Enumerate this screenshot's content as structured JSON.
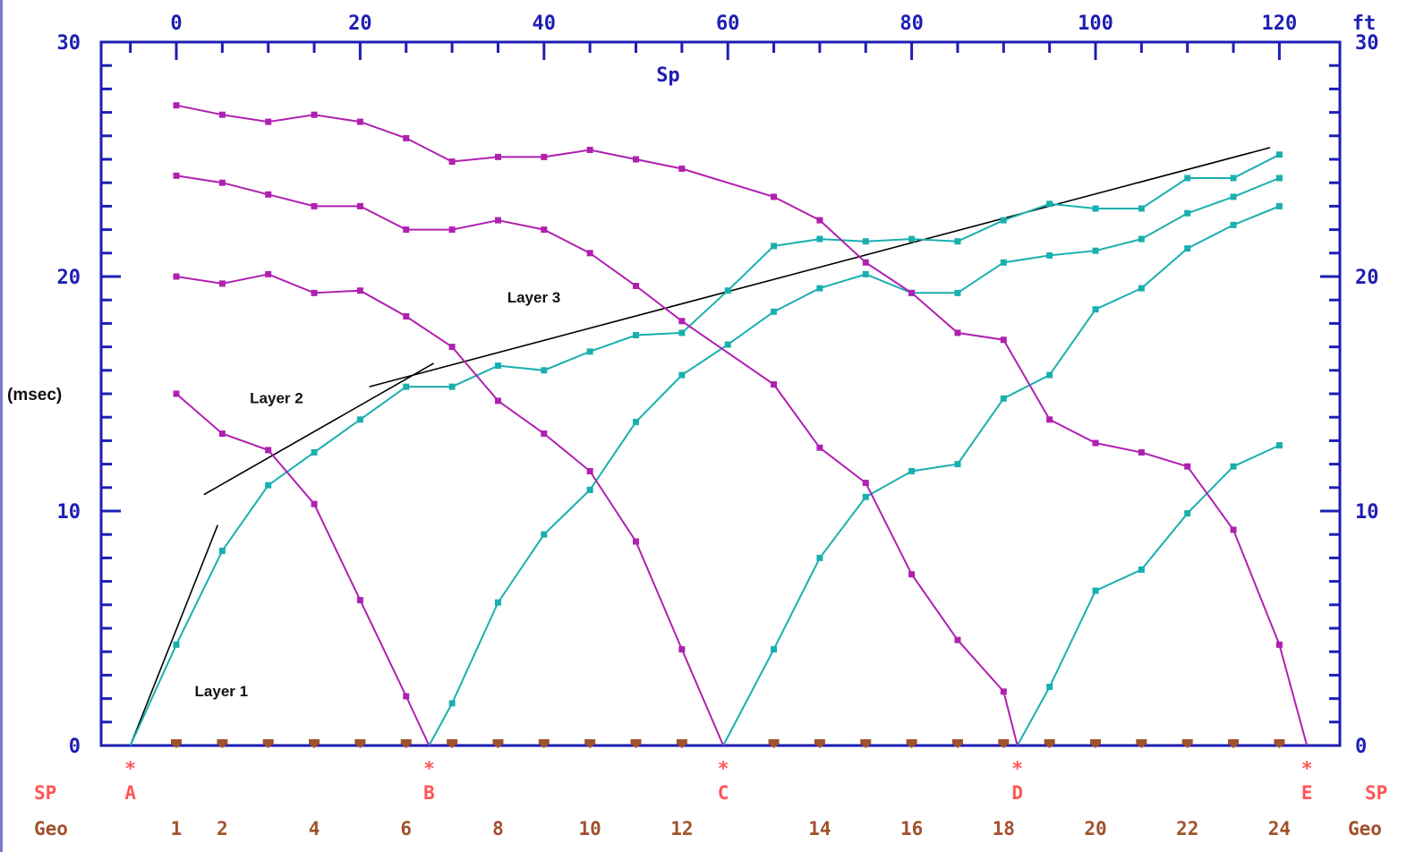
{
  "chart_data": {
    "type": "line",
    "title": "Sp",
    "x_unit_label": "ft",
    "y_unit_label": "(msec)",
    "xlim": [
      -5,
      123
    ],
    "ylim": [
      0,
      30
    ],
    "x_ticks": [
      0,
      20,
      40,
      60,
      80,
      100,
      120
    ],
    "x_tick_labels": [
      "0",
      "20",
      "40",
      "60",
      "80",
      "100",
      "120"
    ],
    "y_ticks": [
      0,
      10,
      20,
      30
    ],
    "y_tick_labels": [
      "0",
      "10",
      "20",
      "30"
    ],
    "shot_points": [
      {
        "label": "A",
        "x": -5
      },
      {
        "label": "B",
        "x": 27.5
      },
      {
        "label": "C",
        "x": 59.5
      },
      {
        "label": "D",
        "x": 91.5
      },
      {
        "label": "E",
        "x": 123
      }
    ],
    "sp_row_label": "SP",
    "geo_row_label": "Geo",
    "geophone_x": [
      0,
      5,
      10,
      15,
      20,
      25,
      30,
      35,
      40,
      45,
      50,
      55,
      65,
      70,
      75,
      80,
      85,
      90,
      95,
      100,
      105,
      110,
      115,
      120
    ],
    "geophone_labels": [
      {
        "text": "1",
        "x": 0
      },
      {
        "text": "2",
        "x": 5
      },
      {
        "text": "4",
        "x": 15
      },
      {
        "text": "6",
        "x": 25
      },
      {
        "text": "8",
        "x": 35
      },
      {
        "text": "10",
        "x": 45
      },
      {
        "text": "12",
        "x": 55
      },
      {
        "text": "14",
        "x": 70
      },
      {
        "text": "16",
        "x": 80
      },
      {
        "text": "18",
        "x": 90
      },
      {
        "text": "20",
        "x": 100
      },
      {
        "text": "22",
        "x": 110
      },
      {
        "text": "24",
        "x": 120
      }
    ],
    "series": [
      {
        "color": "#1aafaf",
        "x": [
          -5,
          0,
          5,
          10,
          15,
          20,
          25,
          30,
          35,
          40,
          45,
          50,
          55,
          60,
          65,
          70,
          75,
          80,
          85,
          90,
          95,
          100,
          105,
          110,
          115,
          120
        ],
        "y": [
          0,
          4.3,
          8.3,
          11.1,
          12.5,
          13.9,
          15.3,
          15.3,
          16.2,
          16.0,
          16.8,
          17.5,
          17.6,
          19.4,
          21.3,
          21.6,
          21.5,
          21.6,
          21.5,
          22.4,
          23.1,
          22.9,
          22.9,
          24.2,
          24.2,
          25.2
        ]
      },
      {
        "color": "#1aafaf",
        "x": [
          27.5,
          30,
          35,
          40,
          45,
          50,
          55,
          60,
          65,
          70,
          75,
          80,
          85,
          90,
          95,
          100,
          105,
          110,
          115,
          120
        ],
        "y": [
          0,
          1.8,
          6.1,
          9.0,
          10.9,
          13.8,
          15.8,
          17.1,
          18.5,
          19.5,
          20.1,
          19.3,
          19.3,
          20.6,
          20.9,
          21.1,
          21.6,
          22.7,
          23.4,
          24.2
        ]
      },
      {
        "color": "#1aafaf",
        "x": [
          59.5,
          65,
          70,
          75,
          80,
          85,
          90,
          95,
          100,
          105,
          110,
          115,
          120
        ],
        "y": [
          0,
          4.1,
          8.0,
          10.6,
          11.7,
          12.0,
          14.8,
          15.8,
          18.6,
          19.5,
          21.2,
          22.2,
          23.0
        ]
      },
      {
        "color": "#1aafaf",
        "x": [
          91.5,
          95,
          100,
          105,
          110,
          115,
          120
        ],
        "y": [
          0,
          2.5,
          6.6,
          7.5,
          9.9,
          11.9,
          12.8
        ]
      },
      {
        "color": "#b020b0",
        "x": [
          0,
          5,
          10,
          15,
          20,
          25,
          27.5
        ],
        "y": [
          15.0,
          13.3,
          12.6,
          10.3,
          6.2,
          2.1,
          0
        ]
      },
      {
        "color": "#b020b0",
        "x": [
          0,
          5,
          10,
          15,
          20,
          25,
          30,
          35,
          40,
          45,
          50,
          55,
          59.5
        ],
        "y": [
          20.0,
          19.7,
          20.1,
          19.3,
          19.4,
          18.3,
          17.0,
          14.7,
          13.3,
          11.7,
          8.7,
          4.1,
          0
        ]
      },
      {
        "color": "#b020b0",
        "x": [
          0,
          5,
          10,
          15,
          20,
          25,
          30,
          35,
          40,
          45,
          50,
          55,
          65,
          70,
          75,
          80,
          85,
          90,
          91.5
        ],
        "y": [
          24.3,
          24.0,
          23.5,
          23.0,
          23.0,
          22.0,
          22.0,
          22.4,
          22.0,
          21.0,
          19.6,
          18.1,
          15.4,
          12.7,
          11.2,
          7.3,
          4.5,
          2.3,
          0
        ]
      },
      {
        "color": "#b020b0",
        "x": [
          0,
          5,
          10,
          15,
          20,
          25,
          30,
          35,
          40,
          45,
          50,
          55,
          65,
          70,
          75,
          80,
          85,
          90,
          95,
          100,
          105,
          110,
          115,
          120,
          123
        ],
        "y": [
          27.3,
          26.9,
          26.6,
          26.9,
          26.6,
          25.9,
          24.9,
          25.1,
          25.1,
          25.4,
          25.0,
          24.6,
          23.4,
          22.4,
          20.6,
          19.3,
          17.6,
          17.3,
          13.9,
          12.9,
          12.5,
          11.9,
          9.2,
          4.3,
          0
        ]
      }
    ],
    "fit_lines": [
      {
        "label": "Layer 1",
        "x": [
          -5,
          4.5
        ],
        "y": [
          0,
          9.4
        ]
      },
      {
        "label": "Layer 2",
        "x": [
          3,
          28
        ],
        "y": [
          10.7,
          16.3
        ]
      },
      {
        "label": "Layer 3",
        "x": [
          21,
          119
        ],
        "y": [
          15.3,
          25.5
        ]
      }
    ],
    "layer_labels": [
      {
        "text": "Layer 1",
        "x": 2,
        "y": 2.1
      },
      {
        "text": "Layer 2",
        "x": 8,
        "y": 14.6
      },
      {
        "text": "Layer 3",
        "x": 36,
        "y": 18.9
      }
    ]
  }
}
